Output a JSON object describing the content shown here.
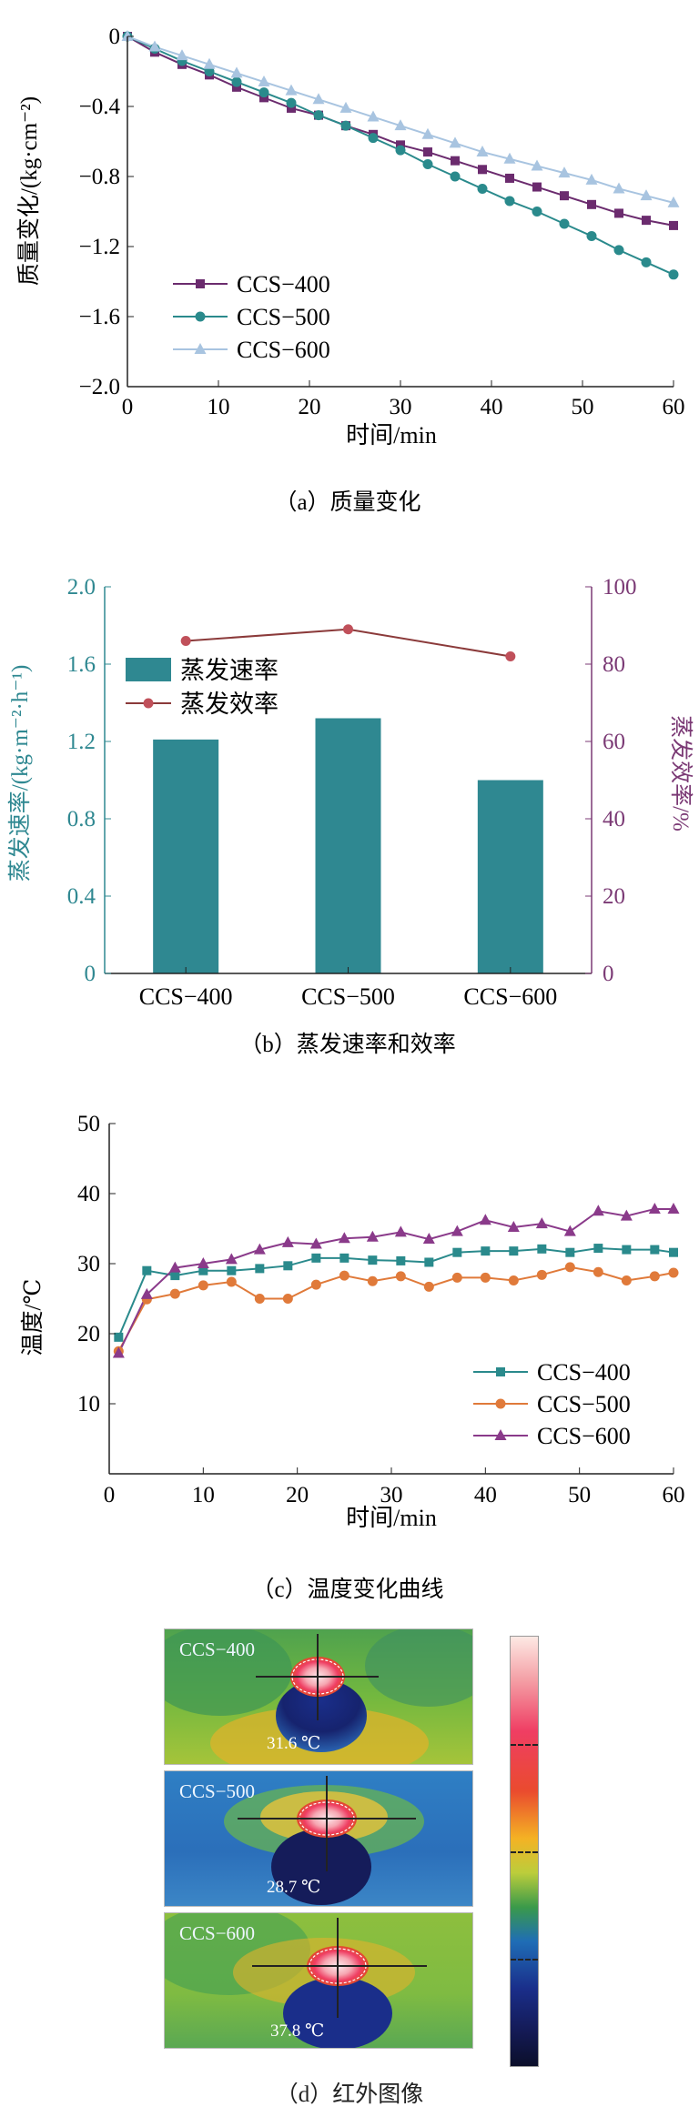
{
  "chart_data": [
    {
      "type": "line",
      "id": "a",
      "xlabel": "时间/min",
      "ylabel": "质量变化/(kg·cm⁻²)",
      "xlim": [
        0,
        60
      ],
      "ylim": [
        -2.0,
        0
      ],
      "xticks": [
        "0",
        "10",
        "20",
        "30",
        "40",
        "50",
        "60"
      ],
      "yticks": [
        "0",
        "−0.4",
        "−0.8",
        "−1.2",
        "−1.6",
        "−2.0"
      ],
      "x": [
        0,
        3,
        6,
        9,
        12,
        15,
        18,
        21,
        24,
        27,
        30,
        33,
        36,
        39,
        42,
        45,
        48,
        51,
        54,
        57,
        60
      ],
      "series": [
        {
          "name": "CCS−400",
          "marker": "square",
          "color": "#6b2b6e",
          "values": [
            0,
            -0.09,
            -0.16,
            -0.22,
            -0.29,
            -0.35,
            -0.41,
            -0.45,
            -0.51,
            -0.56,
            -0.62,
            -0.66,
            -0.71,
            -0.76,
            -0.81,
            -0.86,
            -0.91,
            -0.96,
            -1.01,
            -1.05,
            -1.08
          ]
        },
        {
          "name": "CCS−500",
          "marker": "circle",
          "color": "#2a8a8c",
          "values": [
            0,
            -0.07,
            -0.14,
            -0.2,
            -0.26,
            -0.32,
            -0.38,
            -0.45,
            -0.51,
            -0.58,
            -0.65,
            -0.73,
            -0.8,
            -0.87,
            -0.94,
            -1.0,
            -1.07,
            -1.14,
            -1.22,
            -1.29,
            -1.36
          ]
        },
        {
          "name": "CCS−600",
          "marker": "triangle",
          "color": "#a8c4e0",
          "values": [
            0,
            -0.06,
            -0.11,
            -0.16,
            -0.21,
            -0.26,
            -0.31,
            -0.36,
            -0.41,
            -0.46,
            -0.51,
            -0.56,
            -0.61,
            -0.66,
            -0.7,
            -0.74,
            -0.78,
            -0.82,
            -0.87,
            -0.91,
            -0.95
          ]
        }
      ],
      "legend_position": "bottom-left",
      "caption": "（a）质量变化"
    },
    {
      "type": "bar",
      "id": "b",
      "categories": [
        "CCS−400",
        "CCS−500",
        "CCS−600"
      ],
      "ylabel": "蒸发速率/(kg·m⁻²·h⁻¹)",
      "ylabel_right": "蒸发效率/%",
      "ylim": [
        0,
        2.0
      ],
      "ylim_right": [
        0,
        100
      ],
      "yticks": [
        "0",
        "0.4",
        "0.8",
        "1.2",
        "1.6",
        "2.0"
      ],
      "yticks_right": [
        "0",
        "20",
        "40",
        "60",
        "80",
        "100"
      ],
      "series": [
        {
          "name": "蒸发速率",
          "type": "bar",
          "color": "#2f8891",
          "values": [
            1.21,
            1.32,
            1.0
          ]
        },
        {
          "name": "蒸发效率",
          "type": "line",
          "color": "#8b3a3a",
          "marker_color": "#c0505a",
          "values": [
            86.0,
            89.0,
            82.0
          ]
        }
      ],
      "left_axis_color": "#2f8891",
      "right_axis_color": "#7b3a75",
      "legend_position": "top-left",
      "caption": "（b）蒸发速率和效率"
    },
    {
      "type": "line",
      "id": "c",
      "xlabel": "时间/min",
      "ylabel": "温度/℃",
      "xlim": [
        0,
        60
      ],
      "ylim": [
        0,
        50
      ],
      "xticks": [
        "0",
        "10",
        "20",
        "30",
        "40",
        "50",
        "60"
      ],
      "yticks": [
        "10",
        "20",
        "30",
        "40",
        "50"
      ],
      "x": [
        1,
        4,
        7,
        10,
        13,
        16,
        19,
        22,
        25,
        28,
        31,
        34,
        37,
        40,
        43,
        46,
        49,
        52,
        55,
        58,
        61
      ],
      "series": [
        {
          "name": "CCS−400",
          "marker": "square",
          "color": "#2a8a8c",
          "values": [
            19.5,
            29.0,
            28.3,
            29.0,
            29.0,
            29.3,
            29.7,
            30.8,
            30.8,
            30.5,
            30.4,
            30.2,
            31.6,
            31.8,
            31.8,
            32.1,
            31.6,
            32.2,
            32.0,
            32.0,
            31.6
          ]
        },
        {
          "name": "CCS−500",
          "marker": "circle",
          "color": "#e07a3a",
          "values": [
            17.5,
            24.9,
            25.7,
            26.9,
            27.4,
            25.0,
            25.0,
            27.0,
            28.3,
            27.5,
            28.2,
            26.7,
            28.0,
            28.0,
            27.6,
            28.4,
            29.5,
            28.8,
            27.6,
            28.2,
            28.7
          ]
        },
        {
          "name": "CCS−600",
          "marker": "triangle",
          "color": "#8a3a8a",
          "values": [
            17.2,
            25.6,
            29.4,
            30.0,
            30.6,
            32.0,
            33.0,
            32.8,
            33.6,
            33.8,
            34.5,
            33.5,
            34.6,
            36.2,
            35.2,
            35.7,
            34.6,
            37.5,
            36.8,
            37.8,
            37.8
          ]
        }
      ],
      "legend_position": "bottom-right",
      "caption": "（c）温度变化曲线"
    }
  ],
  "thermal": {
    "panels": [
      {
        "label": "CCS−400",
        "temp": "31.6 ℃"
      },
      {
        "label": "CCS−500",
        "temp": "28.7 ℃"
      },
      {
        "label": "CCS−600",
        "temp": "37.8 ℃"
      }
    ],
    "caption": "（d）红外图像"
  }
}
